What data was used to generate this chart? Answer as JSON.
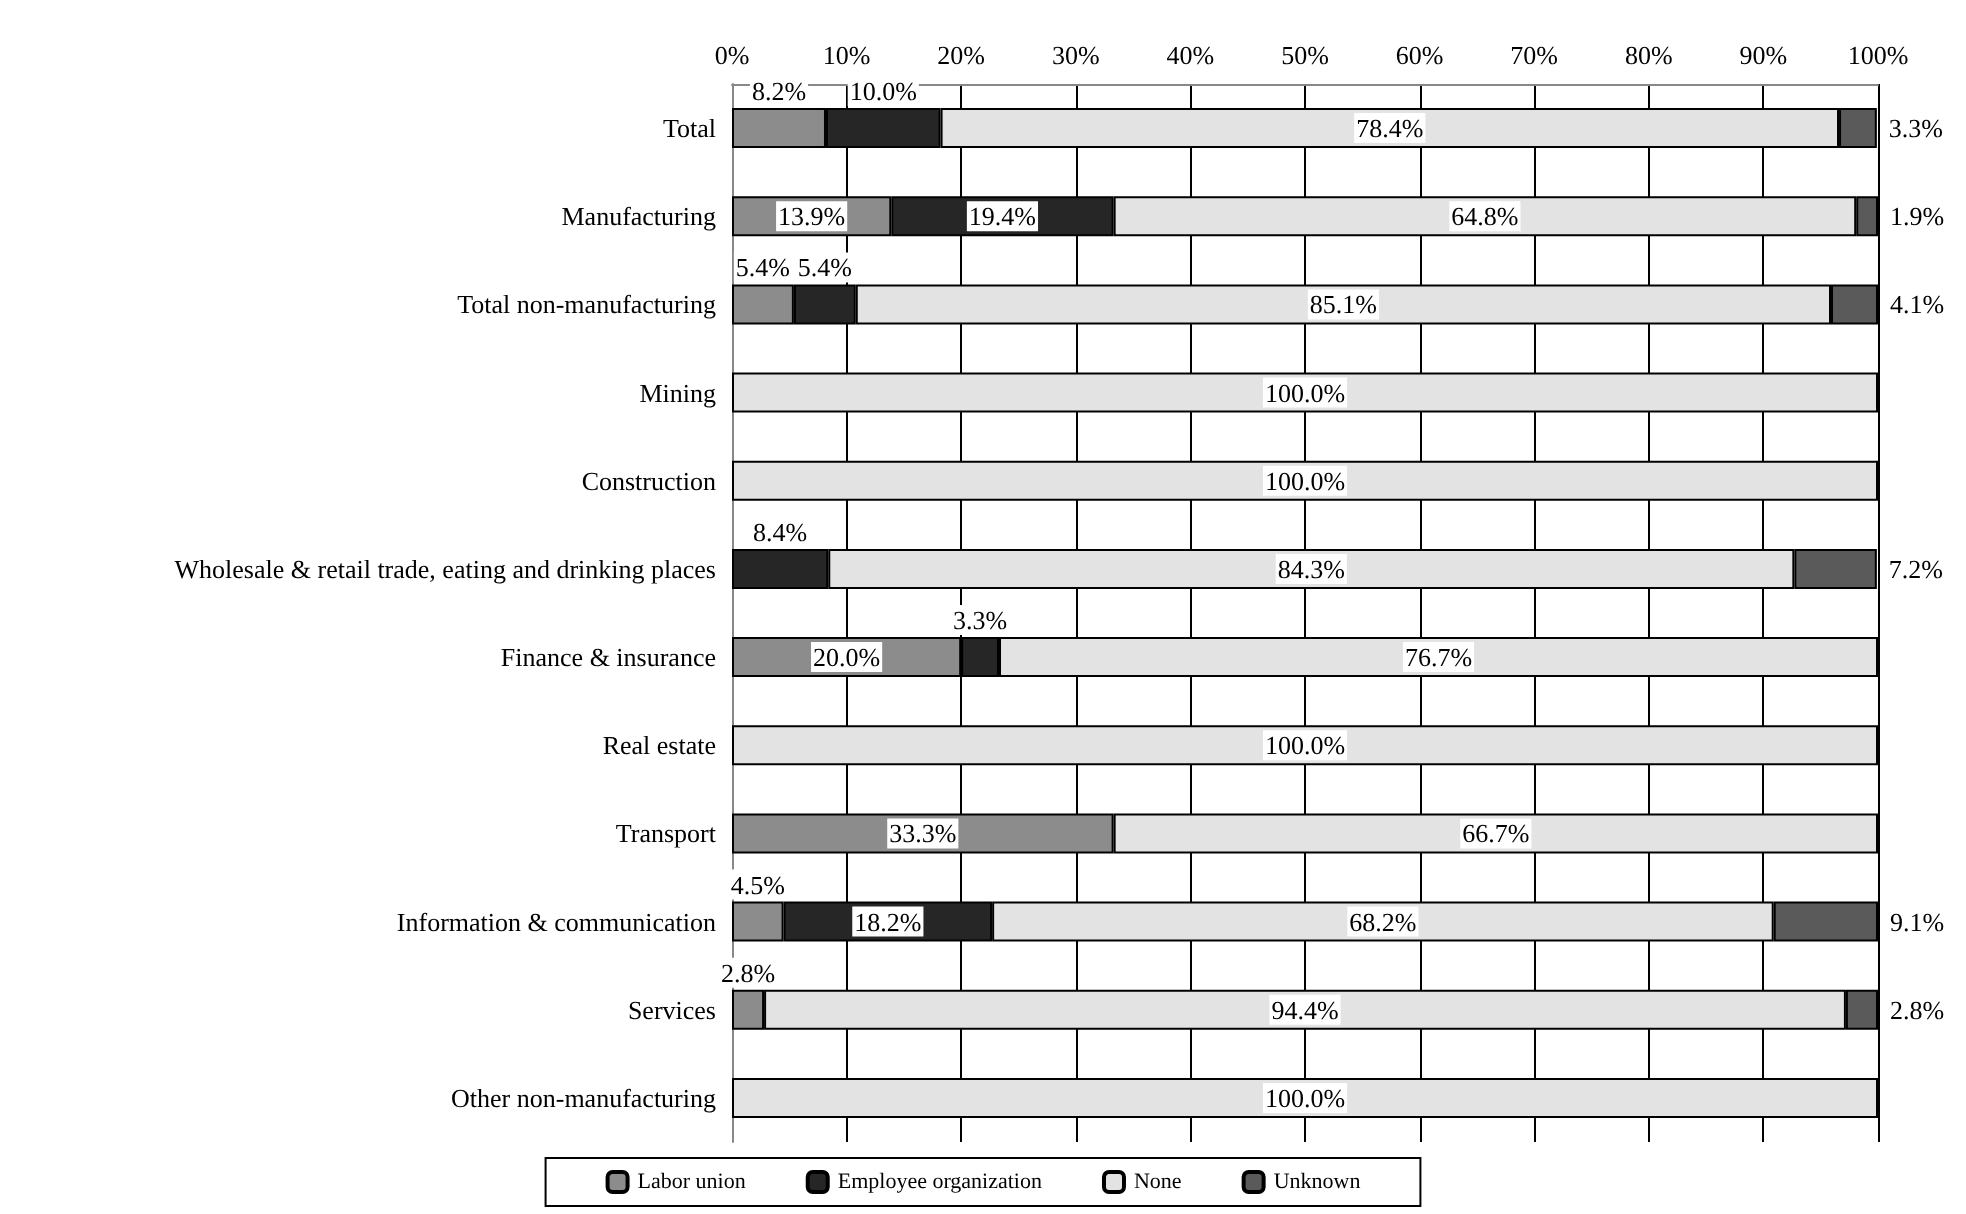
{
  "chart_data": {
    "type": "bar",
    "orientation": "horizontal",
    "stacked": true,
    "categories": [
      "Total",
      "Manufacturing",
      "Total non-manufacturing",
      "Mining",
      "Construction",
      "Wholesale & retail trade, eating and drinking places",
      "Finance & insurance",
      "Real estate",
      "Transport",
      "Information & communication",
      "Services",
      "Other non-manufacturing"
    ],
    "series": [
      {
        "name": "Labor union",
        "color": "#8c8c8c",
        "values": [
          8.2,
          13.9,
          5.4,
          0,
          0,
          0,
          20.0,
          0,
          33.3,
          4.5,
          2.8,
          0
        ],
        "value_labels": [
          "8.2%",
          "13.9%",
          "5.4%",
          null,
          null,
          null,
          "20.0%",
          null,
          "33.3%",
          "4.5%",
          "2.8%",
          null
        ]
      },
      {
        "name": "Employee organization",
        "color": "#262626",
        "values": [
          10.0,
          19.4,
          5.4,
          0,
          0,
          8.4,
          3.3,
          0,
          0,
          18.2,
          0,
          0
        ],
        "value_labels": [
          "10.0%",
          "19.4%",
          "5.4%",
          null,
          null,
          "8.4%",
          "3.3%",
          null,
          null,
          "18.2%",
          null,
          null
        ]
      },
      {
        "name": "None",
        "color": "#e3e3e3",
        "values": [
          78.4,
          64.8,
          85.1,
          100.0,
          100.0,
          84.3,
          76.7,
          100.0,
          66.7,
          68.2,
          94.4,
          100.0
        ],
        "value_labels": [
          "78.4%",
          "64.8%",
          "85.1%",
          "100.0%",
          "100.0%",
          "84.3%",
          "76.7%",
          "100.0%",
          "66.7%",
          "68.2%",
          "94.4%",
          "100.0%"
        ]
      },
      {
        "name": "Unknown",
        "color": "#5a5a5a",
        "values": [
          3.3,
          1.9,
          4.1,
          0,
          0,
          7.2,
          0,
          0,
          0,
          9.1,
          2.8,
          0
        ],
        "value_labels": [
          "3.3%",
          "1.9%",
          "4.1%",
          null,
          null,
          "7.2%",
          null,
          null,
          null,
          "9.1%",
          "2.8%",
          null
        ]
      }
    ],
    "xlim": [
      0,
      100
    ],
    "xticks": [
      {
        "value": 0,
        "label": "0%"
      },
      {
        "value": 10,
        "label": "10%"
      },
      {
        "value": 20,
        "label": "20%"
      },
      {
        "value": 30,
        "label": "30%"
      },
      {
        "value": 40,
        "label": "40%"
      },
      {
        "value": 50,
        "label": "50%"
      },
      {
        "value": 60,
        "label": "60%"
      },
      {
        "value": 70,
        "label": "70%"
      },
      {
        "value": 80,
        "label": "80%"
      },
      {
        "value": 90,
        "label": "90%"
      },
      {
        "value": 100,
        "label": "100%"
      }
    ],
    "grid": "x",
    "legend": "bottom"
  }
}
